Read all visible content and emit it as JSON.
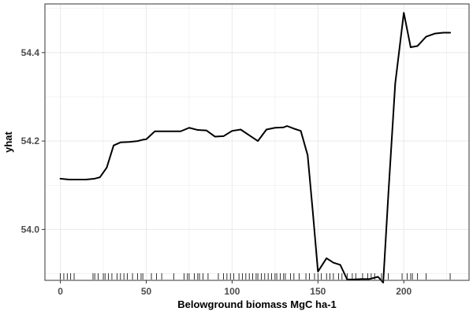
{
  "chart_data": {
    "type": "line",
    "title": "",
    "xlabel": "Belowground biomass MgC ha-1",
    "ylabel": "yhat",
    "xlim": [
      -9,
      238
    ],
    "ylim": [
      53.885,
      54.51
    ],
    "xticks": [
      0,
      50,
      100,
      150,
      200
    ],
    "yticks": [
      54.0,
      54.2,
      54.4
    ],
    "grid": true,
    "colors": {
      "line": "#000000",
      "grid": "#ebebeb",
      "panel_border": "#333333",
      "rug": "#000000"
    },
    "series": [
      {
        "x": [
          0,
          5,
          10,
          15,
          20,
          23,
          27,
          31,
          35,
          40,
          45,
          48,
          50,
          55,
          60,
          65,
          70,
          75,
          80,
          85,
          90,
          95,
          100,
          105,
          110,
          115,
          120,
          125,
          130,
          132,
          136,
          140,
          144,
          147,
          150,
          155,
          159,
          163,
          167,
          171,
          175,
          180,
          185,
          188,
          191,
          195,
          200,
          204,
          208,
          213,
          218,
          223,
          227
        ],
        "y": [
          54.115,
          54.113,
          54.113,
          54.113,
          54.115,
          54.118,
          54.14,
          54.19,
          54.197,
          54.198,
          54.2,
          54.203,
          54.204,
          54.222,
          54.222,
          54.222,
          54.222,
          54.23,
          54.225,
          54.224,
          54.21,
          54.211,
          54.223,
          54.226,
          54.213,
          54.2,
          54.226,
          54.23,
          54.231,
          54.234,
          54.228,
          54.223,
          54.168,
          54.04,
          53.905,
          53.935,
          53.925,
          53.92,
          53.887,
          53.887,
          53.888,
          53.888,
          53.893,
          53.88,
          54.08,
          54.33,
          54.49,
          54.412,
          54.415,
          54.436,
          54.443,
          54.445,
          54.445
        ]
      }
    ],
    "rug_x": [
      0,
      2,
      4,
      6,
      8,
      19,
      20,
      22,
      25,
      26,
      28,
      30,
      33,
      35,
      37,
      39,
      42,
      45,
      47,
      48,
      53,
      56,
      59,
      66,
      72,
      74,
      75,
      78,
      80,
      81,
      83,
      86,
      92,
      95,
      97,
      99,
      101,
      104,
      106,
      108,
      110,
      112,
      114,
      115,
      117,
      119,
      121,
      123,
      125,
      126,
      128,
      130,
      131,
      134,
      136,
      139,
      143,
      145,
      148,
      150,
      152,
      155,
      157,
      159,
      162,
      164,
      167,
      170,
      172,
      176,
      179,
      181,
      183,
      187,
      191,
      199,
      202,
      204,
      205,
      208,
      213,
      227
    ]
  }
}
